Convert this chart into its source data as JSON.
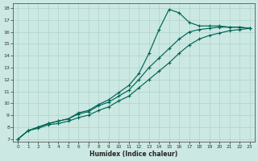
{
  "background_color": "#cce8e2",
  "line_color": "#006655",
  "grid_color": "#aad4cc",
  "xlabel": "Humidex (Indice chaleur)",
  "x_values": [
    0,
    1,
    2,
    3,
    4,
    5,
    6,
    7,
    8,
    9,
    10,
    11,
    12,
    13,
    14,
    15,
    16,
    17,
    18,
    19,
    20,
    21,
    22,
    23
  ],
  "line_peak": [
    7.0,
    7.7,
    8.0,
    8.3,
    8.5,
    8.7,
    9.2,
    9.4,
    9.9,
    10.3,
    10.9,
    11.5,
    12.5,
    14.2,
    16.2,
    17.9,
    17.6,
    16.8,
    16.5,
    16.5,
    16.5,
    16.4,
    16.4,
    16.3
  ],
  "line_upper_diag": [
    7.0,
    7.7,
    8.0,
    8.3,
    8.5,
    8.7,
    9.1,
    9.3,
    9.8,
    10.1,
    10.6,
    11.1,
    12.0,
    13.0,
    13.8,
    14.6,
    15.4,
    16.0,
    16.2,
    16.3,
    16.4,
    16.4,
    16.4,
    16.3
  ],
  "line_lower_diag": [
    7.0,
    7.7,
    7.9,
    8.2,
    8.3,
    8.5,
    8.8,
    9.0,
    9.4,
    9.7,
    10.2,
    10.6,
    11.3,
    12.0,
    12.7,
    13.4,
    14.2,
    14.9,
    15.4,
    15.7,
    15.9,
    16.1,
    16.2,
    16.3
  ],
  "xlim": [
    -0.5,
    23.5
  ],
  "ylim": [
    6.8,
    18.4
  ],
  "yticks": [
    7,
    8,
    9,
    10,
    11,
    12,
    13,
    14,
    15,
    16,
    17,
    18
  ],
  "xticks": [
    0,
    1,
    2,
    3,
    4,
    5,
    6,
    7,
    8,
    9,
    10,
    11,
    12,
    13,
    14,
    15,
    16,
    17,
    18,
    19,
    20,
    21,
    22,
    23
  ]
}
